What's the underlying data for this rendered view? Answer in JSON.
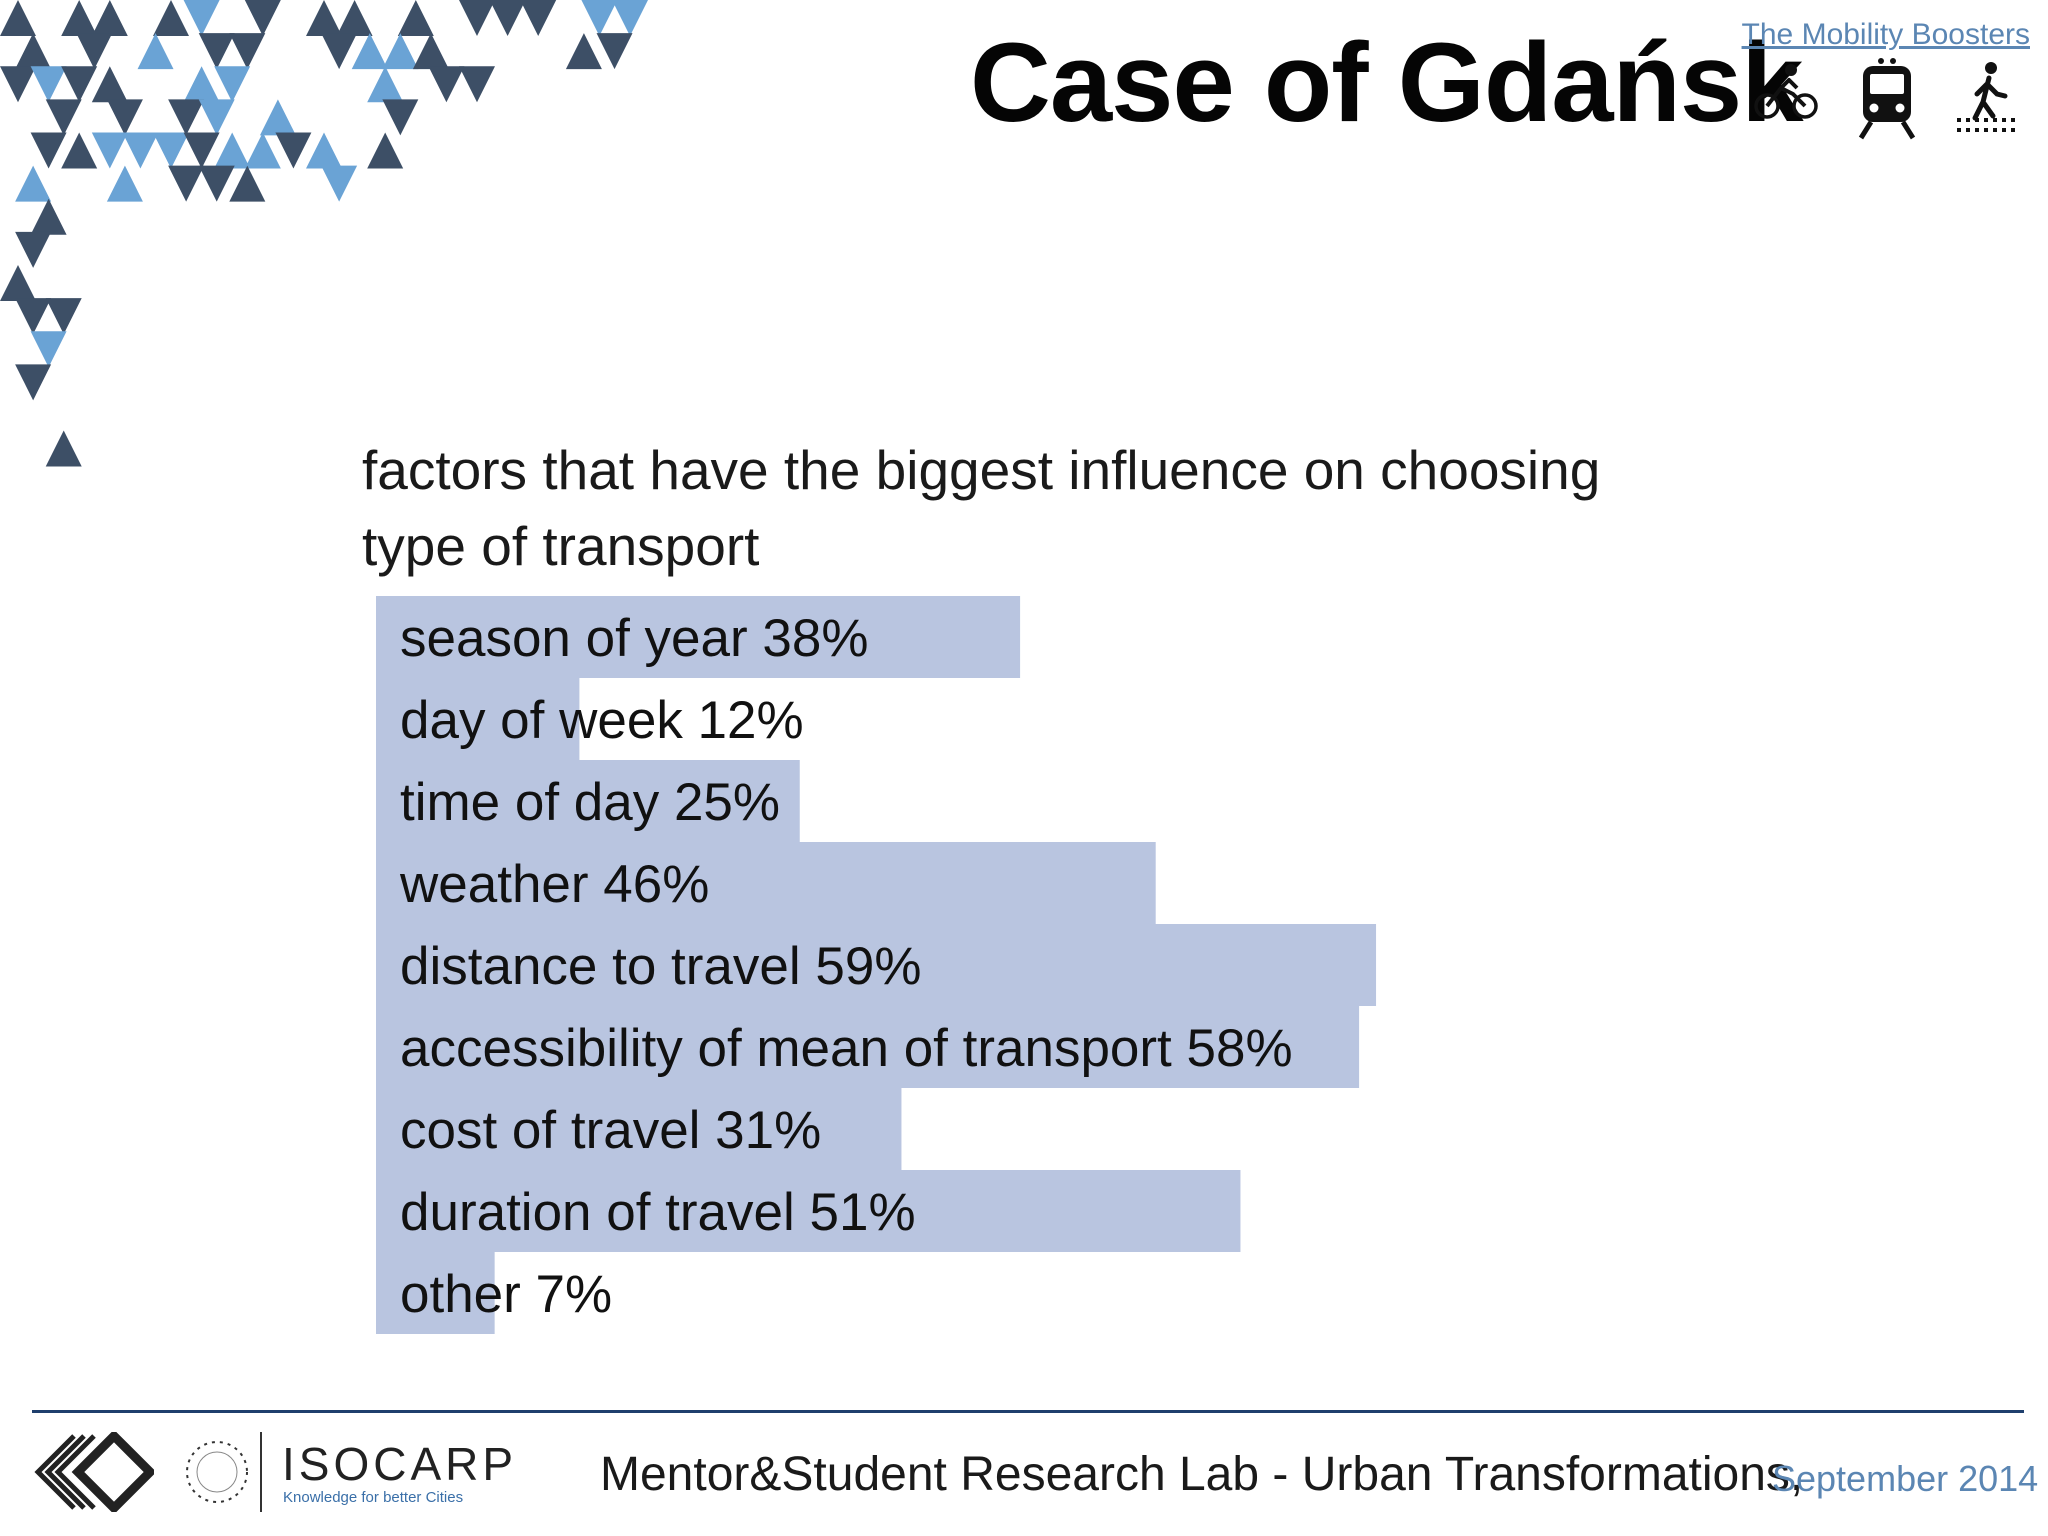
{
  "header": {
    "title": "Case of Gdańsk",
    "brand_link": "The Mobility Boosters",
    "mode_icons": [
      "bicycle-icon",
      "train-icon",
      "pedestrian-icon"
    ]
  },
  "chart_data": {
    "type": "bar",
    "orientation": "horizontal",
    "title": "factors that have the biggest influence on choosing type of transport",
    "categories": [
      "season of year",
      "day of week",
      "time of day",
      "weather",
      "distance to travel",
      "accessibility of mean of transport",
      "cost of travel",
      "duration of travel",
      "other"
    ],
    "values": [
      38,
      12,
      25,
      46,
      59,
      58,
      31,
      51,
      7
    ],
    "labels": [
      "season of year 38%",
      "day of week 12%",
      "time of day 25%",
      "weather 46%",
      "distance to travel 59%",
      "accessibility of mean of transport 58%",
      "cost of travel 31%",
      "duration of travel 51%",
      "other 7%"
    ],
    "unit": "%",
    "bar_color": "#b9c5e0",
    "grid": false,
    "legend": "none"
  },
  "footer": {
    "text": "Mentor&Student Research Lab - Urban Transformations,",
    "date": "September 2014",
    "logo_name": "ISOCARP",
    "logo_tagline": "Knowledge for better Cities",
    "logo_ring": "AIU · ISOCARP · IGSP"
  },
  "colors": {
    "accent": "#5b86b3",
    "triangle_light": "#6aa3d5",
    "triangle_dark": "#3d4f66",
    "footer_line": "#1f3f6d"
  }
}
